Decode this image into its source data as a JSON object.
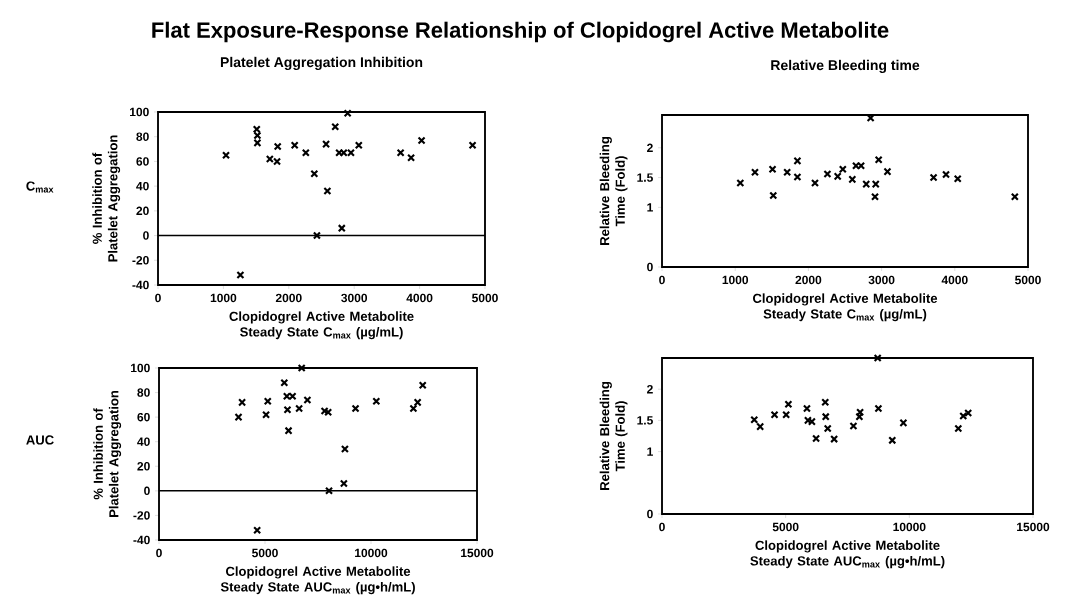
{
  "chart_data": [
    {
      "type": "scatter",
      "title": "Platelet Aggregation Inhibition",
      "xlabel": "Clopidogrel Active Metabolite Steady State C$_{max}$ (µg/mL)",
      "ylabel": "% Inhibition of Platelet Aggregation",
      "annotations": [
        "Flat Exposure-Response Relationship of Clopidogrel Active Metabolite",
        "C$_{max}$"
      ],
      "x": [
        1040,
        1260,
        1510,
        1520,
        1520,
        1710,
        1820,
        1830,
        2090,
        2260,
        2390,
        2430,
        2570,
        2590,
        2710,
        2810,
        2770,
        2840,
        2900,
        2950,
        3070,
        3710,
        3870,
        4030,
        4810
      ],
      "values": [
        65,
        -32,
        86,
        81,
        75,
        62,
        60,
        72,
        73,
        67,
        50,
        0,
        74,
        36,
        88,
        6,
        67,
        67,
        99,
        67,
        73,
        67,
        63,
        77,
        73
      ],
      "color": "#000000",
      "marker": "cross",
      "xlim": [
        0,
        5000
      ],
      "xticks": [
        0,
        1000,
        2000,
        3000,
        4000,
        5000
      ],
      "ylim": [
        -40,
        100
      ],
      "yticks": [
        -40,
        -20,
        0,
        20,
        40,
        60,
        80,
        100
      ],
      "ref_lines": [
        {
          "axis": "y",
          "value": 0
        }
      ]
    },
    {
      "type": "scatter",
      "title": "Relative Bleeding time",
      "xlabel": "Clopidogrel Active Metabolite Steady State C$_{max}$ (µg/mL)",
      "ylabel": "Relative Bleeding Time (Fold)",
      "x": [
        1070,
        1270,
        1510,
        1520,
        1710,
        1850,
        1850,
        2090,
        2260,
        2400,
        2470,
        2600,
        2650,
        2720,
        2790,
        2850,
        2920,
        2910,
        2960,
        3080,
        3710,
        3880,
        4040,
        4820
      ],
      "values": [
        1.41,
        1.59,
        1.64,
        1.2,
        1.59,
        1.78,
        1.51,
        1.41,
        1.56,
        1.52,
        1.64,
        1.47,
        1.7,
        1.7,
        1.39,
        2.5,
        1.39,
        1.18,
        1.8,
        1.6,
        1.5,
        1.55,
        1.48,
        1.18
      ],
      "color": "#000000",
      "marker": "cross",
      "xlim": [
        0,
        5000
      ],
      "xticks": [
        0,
        1000,
        2000,
        3000,
        4000,
        5000
      ],
      "ylim": [
        0,
        2.55
      ],
      "yticks": [
        0,
        1,
        1.5,
        2
      ]
    },
    {
      "type": "scatter",
      "xlabel": "Clopidogrel Active Metabolite Steady State AUC$_{max}$ (µg•h/mL)",
      "ylabel": "% Inhibition of Platelet Aggregation",
      "annotations": [
        "AUC"
      ],
      "x": [
        3750,
        3920,
        4630,
        5050,
        5130,
        5910,
        6030,
        6060,
        6110,
        6300,
        6610,
        6730,
        7000,
        7810,
        7980,
        8020,
        8720,
        8770,
        9270,
        10250,
        12000,
        12200,
        12440
      ],
      "values": [
        60,
        72,
        -32,
        62,
        73,
        88,
        77,
        66,
        49,
        77,
        67,
        100,
        74,
        65,
        64,
        0,
        6,
        34,
        67,
        73,
        67,
        72,
        86
      ],
      "color": "#000000",
      "marker": "cross",
      "xlim": [
        0,
        15000
      ],
      "xticks": [
        0,
        5000,
        10000,
        15000
      ],
      "ylim": [
        -40,
        100
      ],
      "yticks": [
        -40,
        -20,
        0,
        20,
        40,
        60,
        80,
        100
      ],
      "ref_lines": [
        {
          "axis": "y",
          "value": 0
        }
      ]
    },
    {
      "type": "scatter",
      "xlabel": "Clopidogrel Active Metabolite Steady State AUC$_{max}$ (µg•h/mL)",
      "ylabel": "Relative Bleeding Time (Fold)",
      "x": [
        3730,
        3970,
        4550,
        5020,
        5110,
        5860,
        5900,
        6060,
        6230,
        6600,
        6620,
        6700,
        6960,
        7740,
        7980,
        8010,
        8750,
        8720,
        9310,
        9760,
        11980,
        12180,
        12380
      ],
      "values": [
        1.51,
        1.4,
        1.59,
        1.59,
        1.76,
        1.69,
        1.5,
        1.48,
        1.21,
        1.79,
        1.56,
        1.37,
        1.2,
        1.41,
        1.56,
        1.63,
        1.69,
        2.5,
        1.18,
        1.46,
        1.37,
        1.57,
        1.62
      ],
      "color": "#000000",
      "marker": "cross",
      "xlim": [
        0,
        15000
      ],
      "xticks": [
        0,
        5000,
        10000,
        15000
      ],
      "ylim": [
        0,
        2.5
      ],
      "yticks": [
        0,
        1,
        1.5,
        2
      ]
    }
  ]
}
